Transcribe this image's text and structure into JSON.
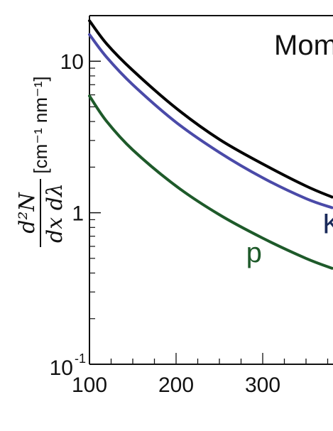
{
  "chart_data": {
    "type": "line",
    "title": "Mom",
    "ylabel": {
      "fraction_numerator": "d²N",
      "fraction_denominator": "dx dλ",
      "units": "[cm⁻¹ nm⁻¹]"
    },
    "xlabel": "",
    "xlim": [
      100,
      380
    ],
    "ylim": [
      0.1,
      20
    ],
    "y_scale": "log",
    "x_ticks": [
      {
        "value": 100,
        "label": "100"
      },
      {
        "value": 200,
        "label": "200"
      },
      {
        "value": 300,
        "label": "300"
      }
    ],
    "y_ticks": [
      {
        "value": 0.1,
        "base": "10",
        "exp": "-1"
      },
      {
        "value": 1,
        "label": "1"
      },
      {
        "value": 10,
        "label": "10"
      }
    ],
    "series": [
      {
        "color": "#000000",
        "x": [
          100,
          120,
          150,
          200,
          250,
          300,
          350,
          380
        ],
        "y": [
          18.5,
          13.0,
          8.7,
          4.9,
          3.05,
          2.1,
          1.5,
          1.27
        ]
      },
      {
        "color": "#4a4aa8",
        "x": [
          100,
          120,
          150,
          200,
          250,
          300,
          350,
          380
        ],
        "y": [
          15.0,
          10.6,
          7.0,
          3.95,
          2.5,
          1.7,
          1.24,
          1.08
        ]
      },
      {
        "color": "#1e5a2a",
        "x": [
          100,
          120,
          150,
          200,
          250,
          300,
          350,
          380
        ],
        "y": [
          5.9,
          4.0,
          2.6,
          1.5,
          0.97,
          0.68,
          0.5,
          0.43
        ]
      }
    ],
    "annotations": [
      {
        "text": "p",
        "color": "#1e5a2a",
        "x": 290,
        "y": 0.55
      },
      {
        "text": "K",
        "color": "#1a2a5a",
        "x": 380,
        "y": 0.85
      }
    ]
  }
}
